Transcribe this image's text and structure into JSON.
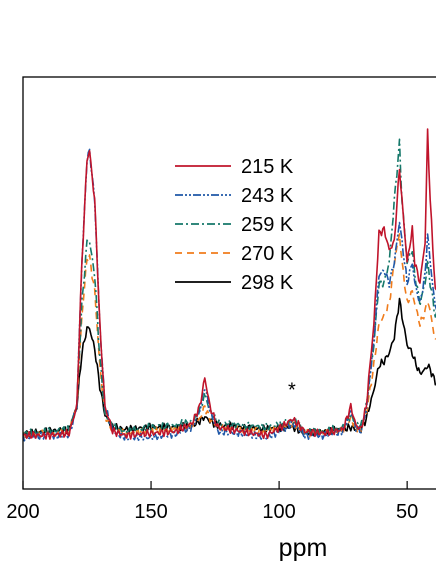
{
  "chart_data": {
    "type": "line",
    "title": "",
    "xlabel": "ppm",
    "ylabel": "",
    "xlim": [
      200,
      36
    ],
    "x_reversed": true,
    "ylim": [
      0,
      1
    ],
    "x_ticks": [
      {
        "value": 200,
        "label": "200"
      },
      {
        "value": 150,
        "label": "150"
      },
      {
        "value": 100,
        "label": "100"
      },
      {
        "value": 50,
        "label": "50"
      }
    ],
    "grid": false,
    "legend_position": "top-center",
    "annotations": [
      {
        "text": "*",
        "x": 95,
        "y": 0.225
      }
    ],
    "series": [
      {
        "name": "215 K",
        "color": "#c0142b",
        "dash": "solid",
        "points": [
          [
            200,
            0.13
          ],
          [
            190,
            0.13
          ],
          [
            182,
            0.135
          ],
          [
            179,
            0.2
          ],
          [
            177,
            0.55
          ],
          [
            175,
            0.8
          ],
          [
            174,
            0.82
          ],
          [
            172,
            0.7
          ],
          [
            170,
            0.4
          ],
          [
            168,
            0.2
          ],
          [
            165,
            0.14
          ],
          [
            160,
            0.13
          ],
          [
            150,
            0.135
          ],
          [
            140,
            0.14
          ],
          [
            134,
            0.16
          ],
          [
            131,
            0.2
          ],
          [
            129,
            0.27
          ],
          [
            127,
            0.2
          ],
          [
            124,
            0.15
          ],
          [
            115,
            0.14
          ],
          [
            105,
            0.13
          ],
          [
            98,
            0.155
          ],
          [
            95,
            0.17
          ],
          [
            93,
            0.16
          ],
          [
            90,
            0.14
          ],
          [
            82,
            0.135
          ],
          [
            75,
            0.145
          ],
          [
            72,
            0.2
          ],
          [
            70,
            0.155
          ],
          [
            68,
            0.145
          ],
          [
            66,
            0.2
          ],
          [
            63,
            0.4
          ],
          [
            61,
            0.62
          ],
          [
            59,
            0.63
          ],
          [
            57,
            0.58
          ],
          [
            55,
            0.6
          ],
          [
            53,
            0.78
          ],
          [
            52,
            0.7
          ],
          [
            50,
            0.55
          ],
          [
            48,
            0.63
          ],
          [
            47,
            0.55
          ],
          [
            45,
            0.5
          ],
          [
            43,
            0.6
          ],
          [
            42,
            0.87
          ],
          [
            41,
            0.7
          ],
          [
            39,
            0.48
          ],
          [
            36,
            0.5
          ]
        ]
      },
      {
        "name": "243 K",
        "color": "#1f58a8",
        "dash": "dashdotdot",
        "points": [
          [
            200,
            0.125
          ],
          [
            190,
            0.13
          ],
          [
            182,
            0.13
          ],
          [
            179,
            0.2
          ],
          [
            177,
            0.55
          ],
          [
            175,
            0.8
          ],
          [
            174,
            0.82
          ],
          [
            172,
            0.7
          ],
          [
            170,
            0.4
          ],
          [
            168,
            0.2
          ],
          [
            165,
            0.14
          ],
          [
            160,
            0.125
          ],
          [
            150,
            0.125
          ],
          [
            140,
            0.135
          ],
          [
            134,
            0.15
          ],
          [
            131,
            0.19
          ],
          [
            129,
            0.25
          ],
          [
            127,
            0.19
          ],
          [
            124,
            0.14
          ],
          [
            115,
            0.135
          ],
          [
            105,
            0.125
          ],
          [
            98,
            0.145
          ],
          [
            95,
            0.16
          ],
          [
            93,
            0.15
          ],
          [
            90,
            0.13
          ],
          [
            82,
            0.13
          ],
          [
            75,
            0.14
          ],
          [
            72,
            0.19
          ],
          [
            70,
            0.15
          ],
          [
            68,
            0.14
          ],
          [
            66,
            0.19
          ],
          [
            63,
            0.36
          ],
          [
            61,
            0.52
          ],
          [
            59,
            0.53
          ],
          [
            57,
            0.5
          ],
          [
            55,
            0.55
          ],
          [
            53,
            0.65
          ],
          [
            52,
            0.6
          ],
          [
            50,
            0.5
          ],
          [
            48,
            0.55
          ],
          [
            47,
            0.5
          ],
          [
            45,
            0.45
          ],
          [
            43,
            0.52
          ],
          [
            42,
            0.62
          ],
          [
            41,
            0.55
          ],
          [
            39,
            0.44
          ],
          [
            36,
            0.46
          ]
        ]
      },
      {
        "name": "259 K",
        "color": "#15786a",
        "dash": "dashdot",
        "points": [
          [
            200,
            0.135
          ],
          [
            190,
            0.14
          ],
          [
            182,
            0.145
          ],
          [
            179,
            0.2
          ],
          [
            177,
            0.45
          ],
          [
            175,
            0.6
          ],
          [
            174,
            0.6
          ],
          [
            172,
            0.52
          ],
          [
            170,
            0.32
          ],
          [
            168,
            0.18
          ],
          [
            165,
            0.15
          ],
          [
            160,
            0.14
          ],
          [
            150,
            0.15
          ],
          [
            140,
            0.155
          ],
          [
            134,
            0.165
          ],
          [
            131,
            0.19
          ],
          [
            129,
            0.23
          ],
          [
            127,
            0.19
          ],
          [
            124,
            0.16
          ],
          [
            115,
            0.155
          ],
          [
            105,
            0.15
          ],
          [
            98,
            0.16
          ],
          [
            95,
            0.165
          ],
          [
            93,
            0.16
          ],
          [
            90,
            0.14
          ],
          [
            82,
            0.14
          ],
          [
            75,
            0.15
          ],
          [
            72,
            0.18
          ],
          [
            70,
            0.16
          ],
          [
            68,
            0.155
          ],
          [
            66,
            0.2
          ],
          [
            63,
            0.35
          ],
          [
            61,
            0.5
          ],
          [
            59,
            0.5
          ],
          [
            57,
            0.55
          ],
          [
            55,
            0.7
          ],
          [
            53,
            0.84
          ],
          [
            52,
            0.7
          ],
          [
            50,
            0.55
          ],
          [
            48,
            0.58
          ],
          [
            47,
            0.52
          ],
          [
            45,
            0.45
          ],
          [
            43,
            0.5
          ],
          [
            42,
            0.55
          ],
          [
            41,
            0.5
          ],
          [
            39,
            0.42
          ],
          [
            36,
            0.44
          ]
        ]
      },
      {
        "name": "270 K",
        "color": "#f07c1c",
        "dash": "dashed",
        "points": [
          [
            200,
            0.13
          ],
          [
            190,
            0.135
          ],
          [
            182,
            0.14
          ],
          [
            179,
            0.2
          ],
          [
            177,
            0.42
          ],
          [
            175,
            0.56
          ],
          [
            174,
            0.56
          ],
          [
            172,
            0.48
          ],
          [
            170,
            0.3
          ],
          [
            168,
            0.18
          ],
          [
            165,
            0.14
          ],
          [
            160,
            0.135
          ],
          [
            150,
            0.14
          ],
          [
            140,
            0.145
          ],
          [
            134,
            0.15
          ],
          [
            131,
            0.17
          ],
          [
            129,
            0.2
          ],
          [
            127,
            0.17
          ],
          [
            124,
            0.15
          ],
          [
            115,
            0.145
          ],
          [
            105,
            0.14
          ],
          [
            98,
            0.15
          ],
          [
            95,
            0.155
          ],
          [
            93,
            0.15
          ],
          [
            90,
            0.135
          ],
          [
            82,
            0.135
          ],
          [
            75,
            0.14
          ],
          [
            72,
            0.17
          ],
          [
            70,
            0.15
          ],
          [
            68,
            0.145
          ],
          [
            66,
            0.18
          ],
          [
            63,
            0.3
          ],
          [
            61,
            0.4
          ],
          [
            59,
            0.42
          ],
          [
            57,
            0.45
          ],
          [
            55,
            0.55
          ],
          [
            53,
            0.62
          ],
          [
            52,
            0.55
          ],
          [
            50,
            0.45
          ],
          [
            48,
            0.48
          ],
          [
            47,
            0.45
          ],
          [
            45,
            0.4
          ],
          [
            43,
            0.43
          ],
          [
            42,
            0.46
          ],
          [
            41,
            0.43
          ],
          [
            39,
            0.36
          ],
          [
            36,
            0.36
          ]
        ]
      },
      {
        "name": "298 K",
        "color": "#000000",
        "dash": "solid",
        "points": [
          [
            200,
            0.135
          ],
          [
            190,
            0.14
          ],
          [
            182,
            0.145
          ],
          [
            179,
            0.2
          ],
          [
            177,
            0.33
          ],
          [
            175,
            0.39
          ],
          [
            174,
            0.39
          ],
          [
            172,
            0.34
          ],
          [
            170,
            0.25
          ],
          [
            168,
            0.18
          ],
          [
            165,
            0.15
          ],
          [
            160,
            0.145
          ],
          [
            150,
            0.15
          ],
          [
            140,
            0.15
          ],
          [
            134,
            0.155
          ],
          [
            131,
            0.165
          ],
          [
            129,
            0.175
          ],
          [
            127,
            0.165
          ],
          [
            124,
            0.155
          ],
          [
            115,
            0.15
          ],
          [
            105,
            0.145
          ],
          [
            98,
            0.15
          ],
          [
            95,
            0.15
          ],
          [
            93,
            0.145
          ],
          [
            90,
            0.135
          ],
          [
            82,
            0.14
          ],
          [
            75,
            0.145
          ],
          [
            72,
            0.15
          ],
          [
            70,
            0.145
          ],
          [
            68,
            0.145
          ],
          [
            66,
            0.17
          ],
          [
            63,
            0.24
          ],
          [
            61,
            0.3
          ],
          [
            59,
            0.31
          ],
          [
            57,
            0.33
          ],
          [
            55,
            0.37
          ],
          [
            53,
            0.46
          ],
          [
            52,
            0.42
          ],
          [
            50,
            0.35
          ],
          [
            48,
            0.33
          ],
          [
            47,
            0.31
          ],
          [
            45,
            0.28
          ],
          [
            43,
            0.29
          ],
          [
            42,
            0.3
          ],
          [
            41,
            0.29
          ],
          [
            39,
            0.26
          ],
          [
            36,
            0.24
          ]
        ]
      }
    ]
  }
}
